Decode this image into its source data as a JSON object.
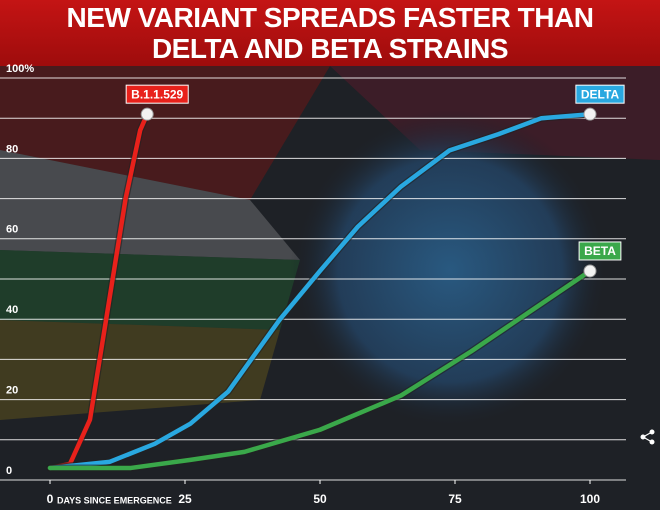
{
  "chart_data": {
    "type": "line",
    "title": "NEW VARIANT SPREADS FASTER THAN DELTA AND BETA STRAINS",
    "xlabel": "DAYS SINCE EMERGENCE",
    "xlim": [
      0,
      100
    ],
    "xticks": [
      0,
      25,
      50,
      75,
      100
    ],
    "ylim": [
      0,
      100
    ],
    "yticks": [
      0,
      20,
      40,
      60,
      80,
      {
        "value": 100,
        "label": "100%"
      }
    ],
    "yticks_minor": [
      10,
      30,
      50,
      70,
      90
    ],
    "grid": true,
    "series": [
      {
        "name": "B.1.1.529",
        "color": "#e8211b",
        "x": [
          0,
          3.7,
          7.4,
          11,
          14,
          16.7,
          18
        ],
        "values": [
          3,
          4,
          15,
          45,
          70,
          87,
          91
        ]
      },
      {
        "name": "DELTA",
        "color": "#29a8e0",
        "x": [
          0,
          11,
          19.4,
          26,
          33,
          42.6,
          50,
          57,
          65,
          74,
          83,
          91,
          100
        ],
        "values": [
          3,
          4.5,
          9,
          14,
          22,
          40,
          52,
          63,
          73,
          82,
          86,
          90,
          91
        ]
      },
      {
        "name": "BETA",
        "color": "#3aa84a",
        "x": [
          0,
          15,
          26,
          36,
          50,
          65,
          78,
          89,
          100
        ],
        "values": [
          3,
          3,
          5,
          7,
          12.5,
          21,
          32,
          42,
          52
        ]
      }
    ]
  }
}
